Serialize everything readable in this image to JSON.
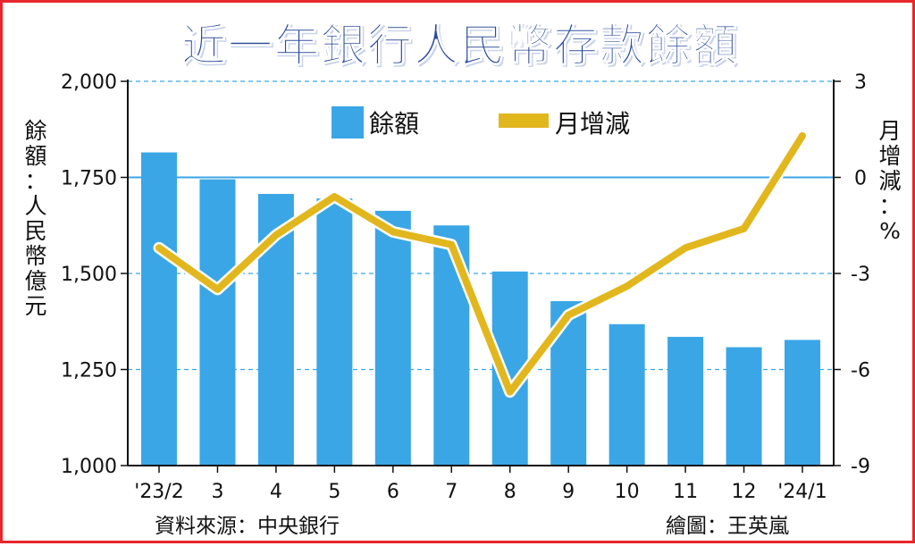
{
  "title": "近一年銀行人民幣存款餘額",
  "ylabel_left": "餘額：人民幣億元",
  "ylabel_right": "月增減：%",
  "source": "資料來源：中央銀行",
  "credit": "繪圖：王英嵐",
  "chart_data": {
    "type": "bar",
    "categories": [
      "'23/2",
      "3",
      "4",
      "5",
      "6",
      "7",
      "8",
      "9",
      "10",
      "11",
      "12",
      "'24/1"
    ],
    "series": [
      {
        "name": "餘額",
        "type": "bar",
        "axis": "left",
        "values": [
          1815,
          1745,
          1707,
          1695,
          1663,
          1625,
          1505,
          1428,
          1368,
          1335,
          1308,
          1327
        ]
      },
      {
        "name": "月增減",
        "type": "line",
        "axis": "right",
        "values": [
          -2.2,
          -3.5,
          -1.8,
          -0.6,
          -1.7,
          -2.1,
          -6.7,
          -4.3,
          -3.4,
          -2.2,
          -1.6,
          1.3
        ]
      }
    ],
    "y_left": {
      "min": 1000,
      "max": 2000,
      "ticks": [
        "1,000",
        "1,250",
        "1,500",
        "1,750",
        "2,000"
      ]
    },
    "y_right": {
      "min": -9,
      "max": 3,
      "ticks": [
        "-9",
        "-6",
        "-3",
        "0",
        "3"
      ]
    },
    "grid": "dashed",
    "legend": "top",
    "colors": {
      "bar": "#3aa6e6",
      "line": "#e2b71e",
      "zero_line": "#3aa6e6",
      "title": "#2a4a9a",
      "border": "#e8262b"
    }
  }
}
